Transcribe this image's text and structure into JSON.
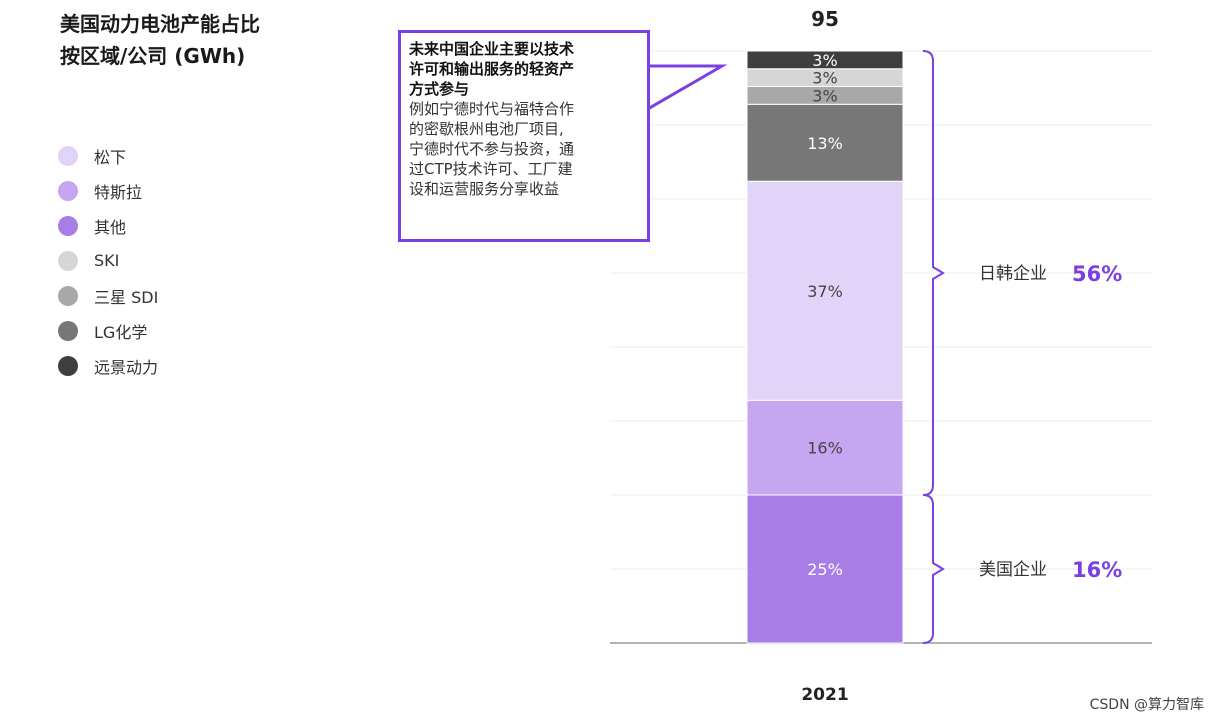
{
  "title": {
    "line1": "美国动力电池产能占比",
    "line2": "按区域/公司 (GWh)"
  },
  "legend": [
    {
      "label": "松下",
      "color": "#e2d3f9"
    },
    {
      "label": "特斯拉",
      "color": "#c6a6f0"
    },
    {
      "label": "其他",
      "color": "#a97de6"
    },
    {
      "label": "SKI",
      "color": "#d6d6d6"
    },
    {
      "label": "三星 SDI",
      "color": "#a8a8a8"
    },
    {
      "label": "LG化学",
      "color": "#777777"
    },
    {
      "label": "远景动力",
      "color": "#3f3f3f"
    }
  ],
  "callout": {
    "head": [
      "未来中国企业主要以技术",
      "许可和输出服务的轻资产",
      "方式参与"
    ],
    "body": [
      "例如宁德时代与福特合作",
      "的密歇根州电池厂项目,",
      "宁德时代不参与投资，通",
      "过CTP技术许可、工厂建",
      "设和运营服务分享收益"
    ]
  },
  "chart_data": {
    "type": "bar",
    "stacked": true,
    "categories": [
      "2021"
    ],
    "total_label": "95",
    "series": [
      {
        "name": "其他",
        "values": [
          25
        ],
        "label": "25%",
        "color": "#a97de6"
      },
      {
        "name": "特斯拉",
        "values": [
          16
        ],
        "label": "16%",
        "color": "#c6a6f0"
      },
      {
        "name": "松下",
        "values": [
          37
        ],
        "label": "37%",
        "color": "#e2d3f9"
      },
      {
        "name": "LG化学",
        "values": [
          13
        ],
        "label": "13%",
        "color": "#777777"
      },
      {
        "name": "三星 SDI",
        "values": [
          3
        ],
        "label": "3%",
        "color": "#a8a8a8"
      },
      {
        "name": "SKI",
        "values": [
          3
        ],
        "label": "3%",
        "color": "#d6d6d6"
      },
      {
        "name": "远景动力",
        "values": [
          3
        ],
        "label": "3%",
        "color": "#3f3f3f"
      }
    ],
    "brackets": [
      {
        "label": "日韩企业",
        "value": "56%",
        "from": 25,
        "to": 100
      },
      {
        "label": "美国企业",
        "value": "16%",
        "from": 0,
        "to": 25
      }
    ],
    "ylim": [
      0,
      100
    ],
    "grid": true,
    "accent_color": "#7b3fe4"
  },
  "watermark": "CSDN @算力智库"
}
